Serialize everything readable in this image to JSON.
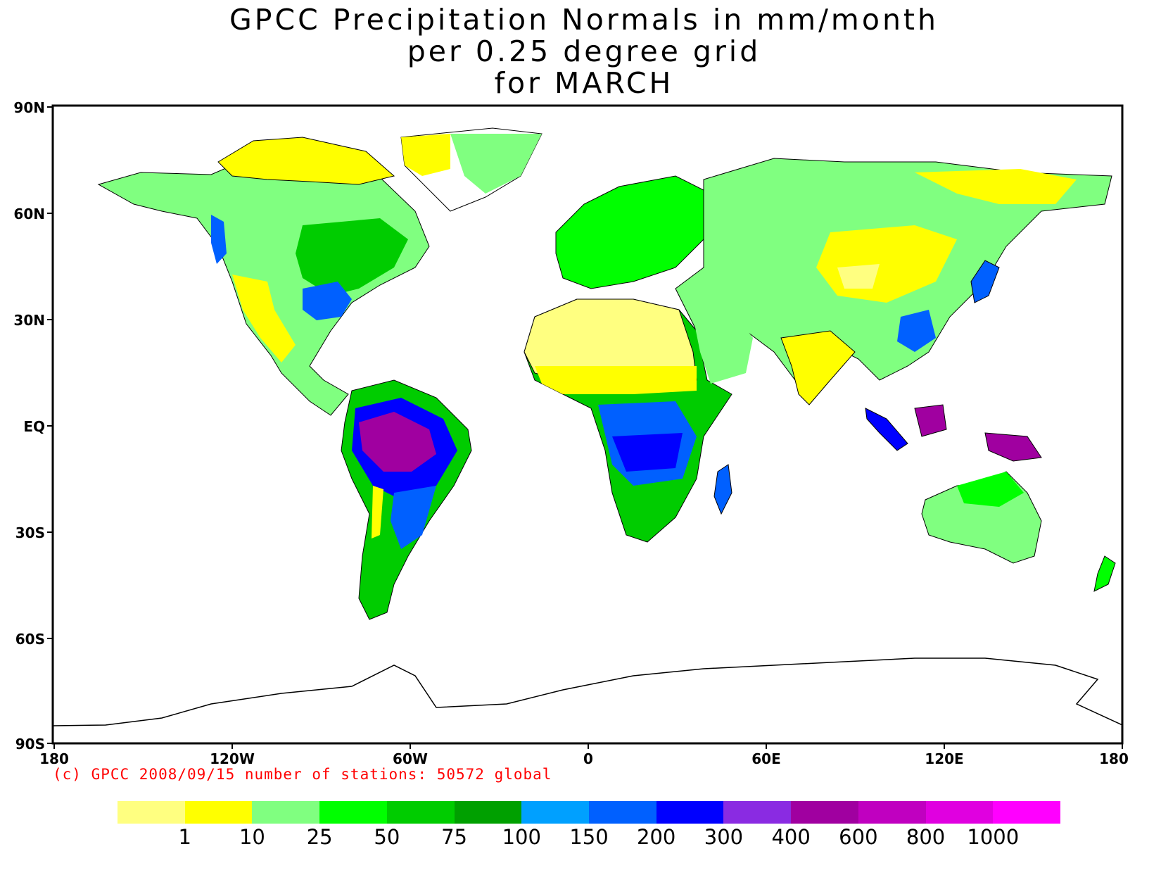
{
  "title": {
    "line1": "GPCC Precipitation Normals in mm/month",
    "line2": "per 0.25 degree grid",
    "line3": "for MARCH"
  },
  "axes": {
    "y_ticks": [
      "90N",
      "60N",
      "30N",
      "EQ",
      "30S",
      "60S",
      "90S"
    ],
    "x_ticks": [
      "180",
      "120W",
      "60W",
      "0",
      "60E",
      "120E",
      "180"
    ]
  },
  "credit": "(c) GPCC 2008/09/15 number of stations: 50572 global",
  "legend": {
    "colors": [
      "#ffff80",
      "#ffff00",
      "#80ff80",
      "#00ff00",
      "#00cc00",
      "#00a000",
      "#00a0ff",
      "#0060ff",
      "#0000ff",
      "#8a2be2",
      "#a000a0",
      "#c000c0",
      "#e000e0",
      "#ff00ff"
    ],
    "labels": [
      "1",
      "10",
      "25",
      "50",
      "75",
      "100",
      "150",
      "200",
      "300",
      "400",
      "600",
      "800",
      "1000"
    ]
  }
}
